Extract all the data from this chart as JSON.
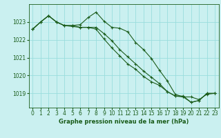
{
  "title": "Graphe pression niveau de la mer (hPa)",
  "bg_color": "#caf0f0",
  "grid_color": "#99dddd",
  "line_color": "#1a5c1a",
  "ylim": [
    1018.2,
    1024.0
  ],
  "yticks": [
    1019,
    1020,
    1021,
    1022,
    1023
  ],
  "xlim": [
    -0.5,
    23.5
  ],
  "xticks": [
    0,
    1,
    2,
    3,
    4,
    5,
    6,
    7,
    8,
    9,
    10,
    11,
    12,
    13,
    14,
    15,
    16,
    17,
    18,
    19,
    20,
    21,
    22,
    23
  ],
  "series": [
    [
      1022.6,
      1023.0,
      1023.35,
      1023.0,
      1022.8,
      1022.8,
      1022.85,
      1023.25,
      1023.55,
      1023.05,
      1022.7,
      1022.65,
      1022.45,
      1021.85,
      1021.45,
      1020.95,
      1020.3,
      1019.7,
      1018.95,
      1018.8,
      1018.8,
      1018.65,
      1018.95,
      1019.0
    ],
    [
      1022.6,
      1023.0,
      1023.35,
      1023.0,
      1022.8,
      1022.8,
      1022.7,
      1022.7,
      1022.7,
      1022.35,
      1021.95,
      1021.45,
      1021.05,
      1020.65,
      1020.25,
      1019.9,
      1019.55,
      1019.1,
      1018.85,
      1018.8,
      1018.5,
      1018.6,
      1019.0,
      1019.0
    ],
    [
      1022.6,
      1023.0,
      1023.35,
      1023.0,
      1022.8,
      1022.75,
      1022.7,
      1022.7,
      1022.6,
      1022.05,
      1021.55,
      1021.1,
      1020.65,
      1020.35,
      1019.95,
      1019.65,
      1019.45,
      1019.1,
      1018.85,
      1018.85,
      1018.5,
      1018.6,
      1019.0,
      1019.0
    ]
  ]
}
